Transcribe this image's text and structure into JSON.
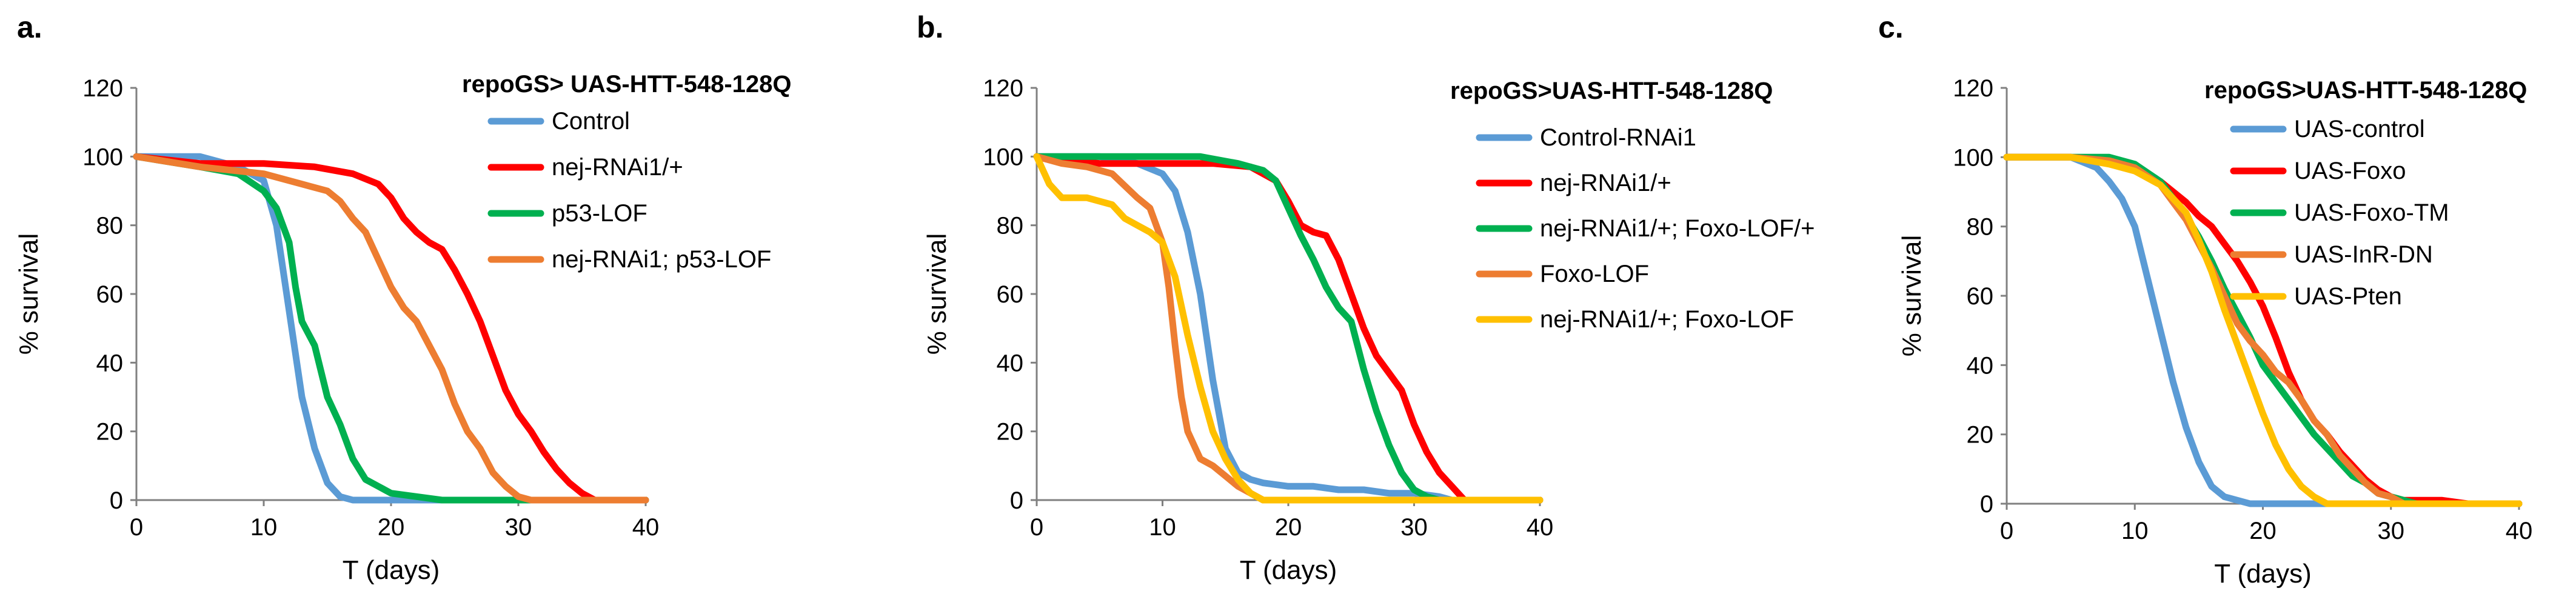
{
  "chart_data": [
    {
      "type": "line",
      "panel_label": "a.",
      "legend_title": "repoGS> UAS-HTT-548-128Q",
      "xlabel": "T (days)",
      "ylabel": "% survival",
      "xlim": [
        0,
        40
      ],
      "ylim": [
        0,
        120
      ],
      "xticks": [
        0,
        10,
        20,
        30,
        40
      ],
      "yticks": [
        0,
        20,
        40,
        60,
        80,
        100,
        120
      ],
      "grid": false,
      "legend_position": "top-right",
      "series": [
        {
          "name": "Control",
          "color": "#5b9bd5",
          "x": [
            0,
            2,
            5,
            8,
            10,
            11,
            12,
            13,
            14,
            15,
            16,
            17,
            40
          ],
          "y": [
            100,
            100,
            100,
            97,
            93,
            80,
            55,
            30,
            15,
            5,
            1,
            0,
            0
          ]
        },
        {
          "name": "nej-RNAi1/+",
          "color": "#ff0000",
          "x": [
            0,
            5,
            10,
            14,
            17,
            19,
            20,
            21,
            22,
            23,
            24,
            25,
            26,
            27,
            28,
            29,
            30,
            31,
            32,
            33,
            34,
            35,
            36,
            40
          ],
          "y": [
            100,
            98,
            98,
            97,
            95,
            92,
            88,
            82,
            78,
            75,
            73,
            67,
            60,
            52,
            42,
            32,
            25,
            20,
            14,
            9,
            5,
            2,
            0,
            0
          ]
        },
        {
          "name": "p53-LOF",
          "color": "#00b050",
          "x": [
            0,
            5,
            8,
            10,
            11,
            12,
            12.5,
            13,
            14,
            15,
            16,
            17,
            18,
            19,
            20,
            22,
            24,
            40
          ],
          "y": [
            100,
            97,
            95,
            90,
            85,
            75,
            62,
            52,
            45,
            30,
            22,
            12,
            6,
            4,
            2,
            1,
            0,
            0
          ]
        },
        {
          "name": "nej-RNAi1; p53-LOF",
          "color": "#ed7d31",
          "x": [
            0,
            5,
            10,
            13,
            15,
            16,
            17,
            18,
            19,
            20,
            21,
            22,
            23,
            24,
            25,
            26,
            27,
            28,
            29,
            30,
            31,
            40
          ],
          "y": [
            100,
            97,
            95,
            92,
            90,
            87,
            82,
            78,
            70,
            62,
            56,
            52,
            45,
            38,
            28,
            20,
            15,
            8,
            4,
            1,
            0,
            0
          ]
        }
      ]
    },
    {
      "type": "line",
      "panel_label": "b.",
      "legend_title": "repoGS>UAS-HTT-548-128Q",
      "xlabel": "T (days)",
      "ylabel": "% survival",
      "xlim": [
        0,
        40
      ],
      "ylim": [
        0,
        120
      ],
      "xticks": [
        0,
        10,
        20,
        30,
        40
      ],
      "yticks": [
        0,
        20,
        40,
        60,
        80,
        100,
        120
      ],
      "grid": false,
      "legend_position": "top-right",
      "series": [
        {
          "name": "Control-RNAi1",
          "color": "#5b9bd5",
          "x": [
            0,
            5,
            8,
            10,
            11,
            12,
            13,
            14,
            15,
            16,
            17,
            18,
            20,
            22,
            24,
            26,
            28,
            30,
            32,
            33,
            40
          ],
          "y": [
            100,
            100,
            98,
            95,
            90,
            78,
            60,
            35,
            15,
            8,
            6,
            5,
            4,
            4,
            3,
            3,
            2,
            2,
            1,
            0,
            0
          ]
        },
        {
          "name": "nej-RNAi1/+",
          "color": "#ff0000",
          "x": [
            0,
            5,
            10,
            14,
            17,
            19,
            20,
            21,
            22,
            23,
            24,
            25,
            26,
            27,
            28,
            29,
            30,
            31,
            32,
            33,
            34,
            40
          ],
          "y": [
            100,
            98,
            98,
            98,
            97,
            93,
            87,
            80,
            78,
            77,
            70,
            60,
            50,
            42,
            37,
            32,
            22,
            14,
            8,
            4,
            0,
            0
          ]
        },
        {
          "name": "nej-RNAi1/+; Foxo-LOF/+",
          "color": "#00b050",
          "x": [
            0,
            5,
            10,
            13,
            16,
            18,
            19,
            20,
            21,
            22,
            23,
            24,
            25,
            26,
            27,
            28,
            29,
            30,
            31,
            32,
            40
          ],
          "y": [
            100,
            100,
            100,
            100,
            98,
            96,
            93,
            85,
            77,
            70,
            62,
            56,
            52,
            38,
            26,
            16,
            8,
            3,
            1,
            0,
            0
          ]
        },
        {
          "name": "Foxo-LOF",
          "color": "#ed7d31",
          "x": [
            0,
            2,
            4,
            6,
            8,
            9,
            10,
            10.5,
            11,
            11.5,
            12,
            13,
            14,
            15,
            16,
            17,
            18,
            40
          ],
          "y": [
            100,
            98,
            97,
            95,
            88,
            85,
            75,
            62,
            45,
            30,
            20,
            12,
            10,
            7,
            4,
            2,
            0,
            0
          ]
        },
        {
          "name": "nej-RNAi1/+; Foxo-LOF",
          "color": "#ffc000",
          "x": [
            0,
            1,
            2,
            4,
            6,
            7,
            8,
            9,
            10,
            11,
            12,
            13,
            14,
            15,
            16,
            17,
            18,
            40
          ],
          "y": [
            100,
            92,
            88,
            88,
            86,
            82,
            80,
            78,
            75,
            65,
            48,
            33,
            20,
            12,
            6,
            2,
            0,
            0
          ]
        }
      ]
    },
    {
      "type": "line",
      "panel_label": "c.",
      "legend_title": "repoGS>UAS-HTT-548-128Q",
      "xlabel": "T (days)",
      "ylabel": "% survival",
      "xlim": [
        0,
        40
      ],
      "ylim": [
        0,
        120
      ],
      "xticks": [
        0,
        10,
        20,
        30,
        40
      ],
      "yticks": [
        0,
        20,
        40,
        60,
        80,
        100,
        120
      ],
      "grid": false,
      "legend_position": "top-right",
      "series": [
        {
          "name": "UAS-control",
          "color": "#5b9bd5",
          "x": [
            0,
            5,
            7,
            8,
            9,
            10,
            11,
            12,
            13,
            14,
            15,
            16,
            17,
            18,
            19,
            40
          ],
          "y": [
            100,
            100,
            97,
            93,
            88,
            80,
            65,
            50,
            35,
            22,
            12,
            5,
            2,
            1,
            0,
            0
          ]
        },
        {
          "name": "UAS-Foxo",
          "color": "#ff0000",
          "x": [
            0,
            5,
            8,
            10,
            12,
            14,
            15,
            16,
            17,
            18,
            19,
            20,
            21,
            22,
            23,
            24,
            25,
            26,
            27,
            28,
            29,
            30,
            31,
            32,
            34,
            36,
            40
          ],
          "y": [
            100,
            100,
            99,
            97,
            93,
            87,
            83,
            80,
            75,
            70,
            64,
            57,
            48,
            38,
            30,
            24,
            20,
            15,
            11,
            7,
            4,
            2,
            1,
            1,
            1,
            0,
            0
          ]
        },
        {
          "name": "UAS-Foxo-TM",
          "color": "#00b050",
          "x": [
            0,
            5,
            8,
            10,
            12,
            13,
            14,
            15,
            16,
            17,
            18,
            19,
            20,
            21,
            22,
            23,
            24,
            25,
            26,
            27,
            28,
            29,
            30,
            31,
            32,
            40
          ],
          "y": [
            100,
            100,
            100,
            98,
            93,
            88,
            83,
            77,
            70,
            62,
            55,
            48,
            40,
            35,
            30,
            25,
            20,
            16,
            12,
            8,
            6,
            3,
            2,
            1,
            0,
            0
          ]
        },
        {
          "name": "UAS-InR-DN",
          "color": "#ed7d31",
          "x": [
            0,
            5,
            8,
            10,
            12,
            13,
            14,
            15,
            16,
            17,
            18,
            19,
            20,
            21,
            22,
            23,
            24,
            25,
            26,
            27,
            28,
            29,
            30,
            31,
            40
          ],
          "y": [
            100,
            100,
            99,
            97,
            92,
            87,
            82,
            75,
            68,
            60,
            52,
            47,
            43,
            38,
            35,
            30,
            24,
            20,
            14,
            10,
            6,
            3,
            2,
            0,
            0
          ]
        },
        {
          "name": "UAS-Pten",
          "color": "#ffc000",
          "x": [
            0,
            5,
            8,
            10,
            12,
            13,
            14,
            15,
            16,
            17,
            18,
            19,
            20,
            21,
            22,
            23,
            24,
            25,
            40
          ],
          "y": [
            100,
            100,
            98,
            96,
            92,
            88,
            84,
            76,
            67,
            56,
            46,
            36,
            26,
            17,
            10,
            5,
            2,
            0,
            0
          ]
        }
      ]
    }
  ]
}
